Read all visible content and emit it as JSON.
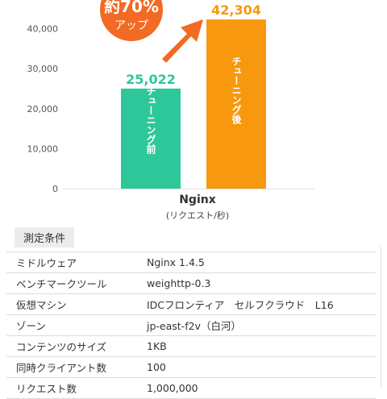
{
  "chart_data": {
    "type": "bar",
    "categories": [
      "チューニング前",
      "チューニング後"
    ],
    "values": [
      25022,
      42304
    ],
    "value_labels": [
      "25,022",
      "42,304"
    ],
    "colors": [
      "#2ec79a",
      "#f7980f"
    ],
    "xlabel": "Nginx",
    "xsublabel": "(リクエスト/秒)",
    "yticks": [
      "0",
      "10,000",
      "20,000",
      "30,000",
      "40,000"
    ],
    "ylim": [
      0,
      50000
    ],
    "badge": {
      "line1": "約70%",
      "line2": "アップ",
      "color": "#f26a23"
    },
    "arrow_color": "#f26a23"
  },
  "conditions": {
    "title": "測定条件",
    "rows": [
      {
        "key": "ミドルウェア",
        "value": "Nginx 1.4.5"
      },
      {
        "key": "ベンチマークツール",
        "value": "weighttp-0.3"
      },
      {
        "key": "仮想マシン",
        "value": "IDCフロンティア　セルフクラウド　L16"
      },
      {
        "key": "ゾーン",
        "value": "jp-east-f2v（白河）"
      },
      {
        "key": "コンテンツのサイズ",
        "value": "1KB"
      },
      {
        "key": "同時クライアント数",
        "value": "100"
      },
      {
        "key": "リクエスト数",
        "value": "1,000,000"
      }
    ]
  }
}
